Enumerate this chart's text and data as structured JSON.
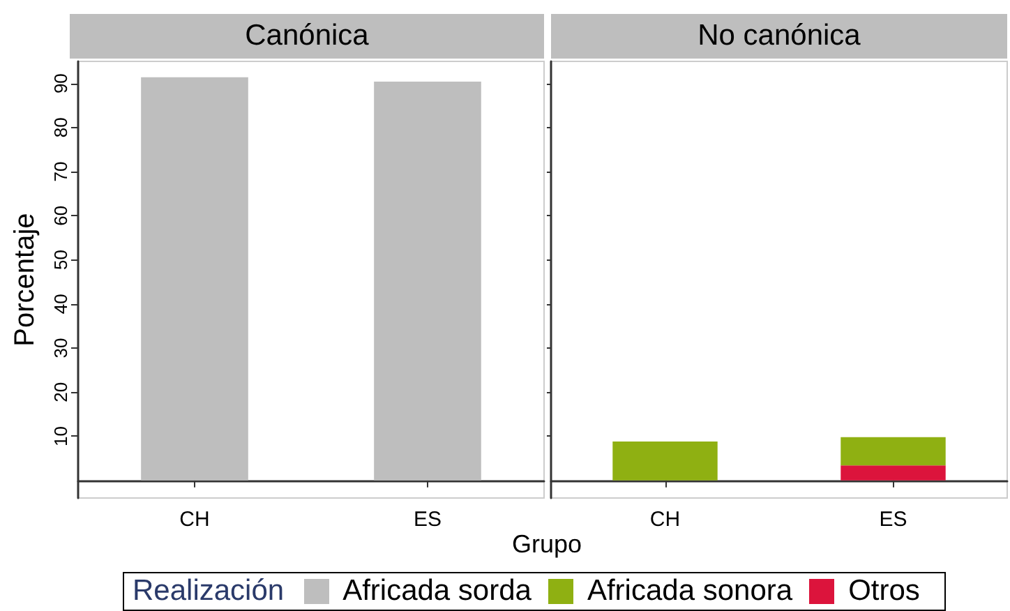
{
  "chart_data": [
    {
      "type": "bar",
      "title": "Canónica",
      "ylabel": "Porcentaje",
      "categories": [
        "CH",
        "ES"
      ],
      "ylim": [
        -4,
        95
      ],
      "yticks": [
        10,
        20,
        30,
        40,
        50,
        60,
        70,
        80,
        90
      ],
      "legend": "bottom",
      "series": [
        {
          "name": "Africada sorda",
          "color": "#bebebe",
          "values": [
            91.4,
            90.4
          ]
        }
      ]
    },
    {
      "type": "bar",
      "title": "No canónica",
      "xlabel": "Grupo",
      "legend_title": "Realización",
      "categories": [
        "CH",
        "ES"
      ],
      "ylim": [
        -4,
        95
      ],
      "yticks": [
        10,
        20,
        30,
        40,
        50,
        60,
        70,
        80,
        90
      ],
      "stacked": true,
      "tick_labels": "x",
      "legend": "bottom",
      "series": [
        {
          "name": "Otros",
          "color": "#dc143c",
          "values": [
            null,
            3.4
          ]
        },
        {
          "name": "Africada sonora",
          "color": "#8fb012",
          "values": [
            8.8,
            6.4
          ]
        }
      ]
    }
  ]
}
